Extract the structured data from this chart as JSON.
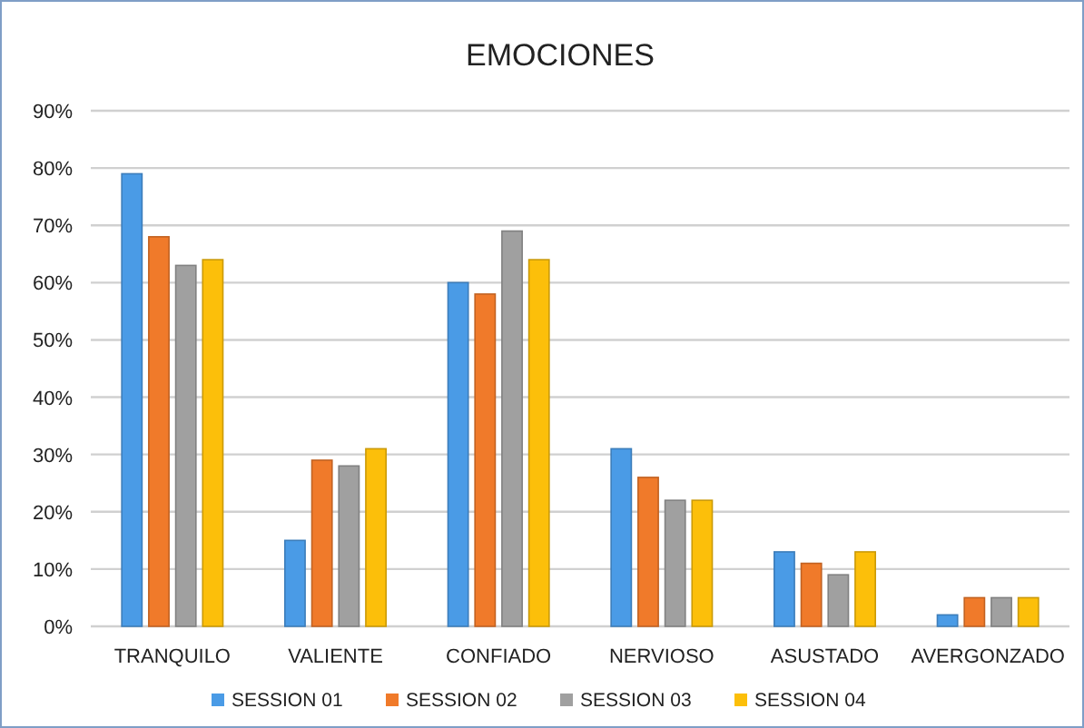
{
  "chart_data": {
    "type": "bar",
    "title": "EMOCIONES",
    "categories": [
      "TRANQUILO",
      "VALIENTE",
      "CONFIADO",
      "NERVIOSO",
      "ASUSTADO",
      "AVERGONZADO"
    ],
    "series": [
      {
        "name": "SESSION 01",
        "color": "#4a9be6",
        "values": [
          79,
          15,
          60,
          31,
          13,
          2
        ]
      },
      {
        "name": "SESSION 02",
        "color": "#f07a2a",
        "values": [
          68,
          29,
          58,
          26,
          11,
          5
        ]
      },
      {
        "name": "SESSION 03",
        "color": "#a0a0a0",
        "values": [
          63,
          28,
          69,
          22,
          9,
          5
        ]
      },
      {
        "name": "SESSION 04",
        "color": "#fcbf0a",
        "values": [
          64,
          31,
          64,
          22,
          13,
          5
        ]
      }
    ],
    "ylim": [
      0,
      90
    ],
    "yticks": [
      {
        "value": 0,
        "label": "0%"
      },
      {
        "value": 10,
        "label": "10%"
      },
      {
        "value": 20,
        "label": "20%"
      },
      {
        "value": 30,
        "label": "30%"
      },
      {
        "value": 40,
        "label": "40%"
      },
      {
        "value": 50,
        "label": "50%"
      },
      {
        "value": 60,
        "label": "60%"
      },
      {
        "value": 70,
        "label": "70%"
      },
      {
        "value": 80,
        "label": "80%"
      },
      {
        "value": 90,
        "label": "90%"
      }
    ],
    "grid": "y",
    "legend": "bottom"
  }
}
